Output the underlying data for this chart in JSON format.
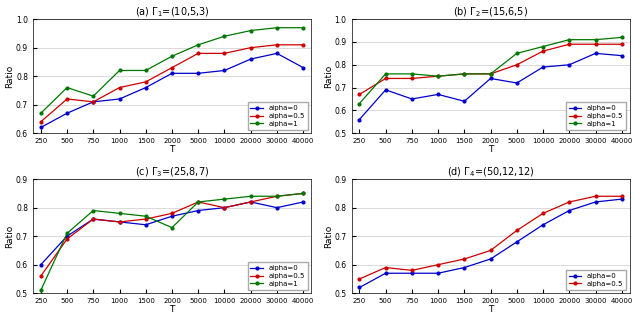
{
  "subplots": [
    {
      "title": "(a) $\\Gamma_1$=(10,5,3)",
      "xlabel": "T",
      "ylabel": "Ratio",
      "ylim": [
        0.6,
        1.0
      ],
      "yticks": [
        0.6,
        0.7,
        0.8,
        0.9,
        1.0
      ],
      "xtick_labels": [
        "250",
        "500",
        "750",
        "1000",
        "1500",
        "2000",
        "5000",
        "10000",
        "20000",
        "30000",
        "40000"
      ],
      "series": [
        {
          "label": "alpha=0",
          "color": "#0000cc",
          "data": [
            0.62,
            0.67,
            0.71,
            0.72,
            0.76,
            0.81,
            0.81,
            0.82,
            0.86,
            0.88,
            0.83
          ]
        },
        {
          "label": "alpha=0.5",
          "color": "#cc0000",
          "data": [
            0.64,
            0.72,
            0.71,
            0.76,
            0.78,
            0.83,
            0.88,
            0.88,
            0.9,
            0.91,
            0.91
          ]
        },
        {
          "label": "alpha=1",
          "color": "#007700",
          "data": [
            0.67,
            0.76,
            0.73,
            0.82,
            0.82,
            0.87,
            0.91,
            0.94,
            0.96,
            0.97,
            0.97
          ]
        }
      ],
      "legend_loc": "lower right"
    },
    {
      "title": "(b) $\\Gamma_2$=(15,6,5)",
      "xlabel": "T",
      "ylabel": "Ratio",
      "ylim": [
        0.5,
        1.0
      ],
      "yticks": [
        0.5,
        0.6,
        0.7,
        0.8,
        0.9,
        1.0
      ],
      "xtick_labels": [
        "250",
        "500",
        "750",
        "1000",
        "1500",
        "2000",
        "5000",
        "10000",
        "20000",
        "30000",
        "40000"
      ],
      "series": [
        {
          "label": "alpha=0",
          "color": "#0000cc",
          "data": [
            0.56,
            0.69,
            0.65,
            0.67,
            0.64,
            0.74,
            0.72,
            0.79,
            0.8,
            0.85,
            0.84
          ]
        },
        {
          "label": "alpha=0.5",
          "color": "#cc0000",
          "data": [
            0.67,
            0.74,
            0.74,
            0.75,
            0.76,
            0.76,
            0.8,
            0.86,
            0.89,
            0.89,
            0.89
          ]
        },
        {
          "label": "alpha=1",
          "color": "#007700",
          "data": [
            0.63,
            0.76,
            0.76,
            0.75,
            0.76,
            0.76,
            0.85,
            0.88,
            0.91,
            0.91,
            0.92
          ]
        }
      ],
      "legend_loc": "lower right"
    },
    {
      "title": "(c) $\\Gamma_3$=(25,8,7)",
      "xlabel": "T",
      "ylabel": "Ratio",
      "ylim": [
        0.5,
        0.9
      ],
      "yticks": [
        0.5,
        0.6,
        0.7,
        0.8,
        0.9
      ],
      "xtick_labels": [
        "250",
        "500",
        "750",
        "1000",
        "1500",
        "2000",
        "5000",
        "10000",
        "20000",
        "30000",
        "40000"
      ],
      "series": [
        {
          "label": "alpha=0",
          "color": "#0000cc",
          "data": [
            0.6,
            0.7,
            0.76,
            0.75,
            0.74,
            0.77,
            0.79,
            0.8,
            0.82,
            0.8,
            0.82
          ]
        },
        {
          "label": "alpha=0.5",
          "color": "#cc0000",
          "data": [
            0.56,
            0.69,
            0.76,
            0.75,
            0.76,
            0.78,
            0.82,
            0.8,
            0.82,
            0.84,
            0.85
          ]
        },
        {
          "label": "alpha=1",
          "color": "#007700",
          "data": [
            0.51,
            0.71,
            0.79,
            0.78,
            0.77,
            0.73,
            0.82,
            0.83,
            0.84,
            0.84,
            0.85
          ]
        }
      ],
      "legend_loc": "lower right"
    },
    {
      "title": "(d) $\\Gamma_4$=(50,12,12)",
      "xlabel": "T",
      "ylabel": "Ratio",
      "ylim": [
        0.5,
        0.9
      ],
      "yticks": [
        0.5,
        0.6,
        0.7,
        0.8,
        0.9
      ],
      "xtick_labels": [
        "250",
        "500",
        "750",
        "1000",
        "1500",
        "2000",
        "5000",
        "10000",
        "20000",
        "30000",
        "40000"
      ],
      "series": [
        {
          "label": "alpha=0",
          "color": "#0000cc",
          "data": [
            0.52,
            0.57,
            0.57,
            0.57,
            0.59,
            0.62,
            0.68,
            0.74,
            0.79,
            0.82,
            0.83
          ]
        },
        {
          "label": "alpha=0.5",
          "color": "#cc0000",
          "data": [
            0.55,
            0.59,
            0.58,
            0.6,
            0.62,
            0.65,
            0.72,
            0.78,
            0.82,
            0.84,
            0.84
          ]
        }
      ],
      "legend_loc": "lower right"
    }
  ],
  "fig_width": 6.4,
  "fig_height": 3.2,
  "dpi": 100
}
